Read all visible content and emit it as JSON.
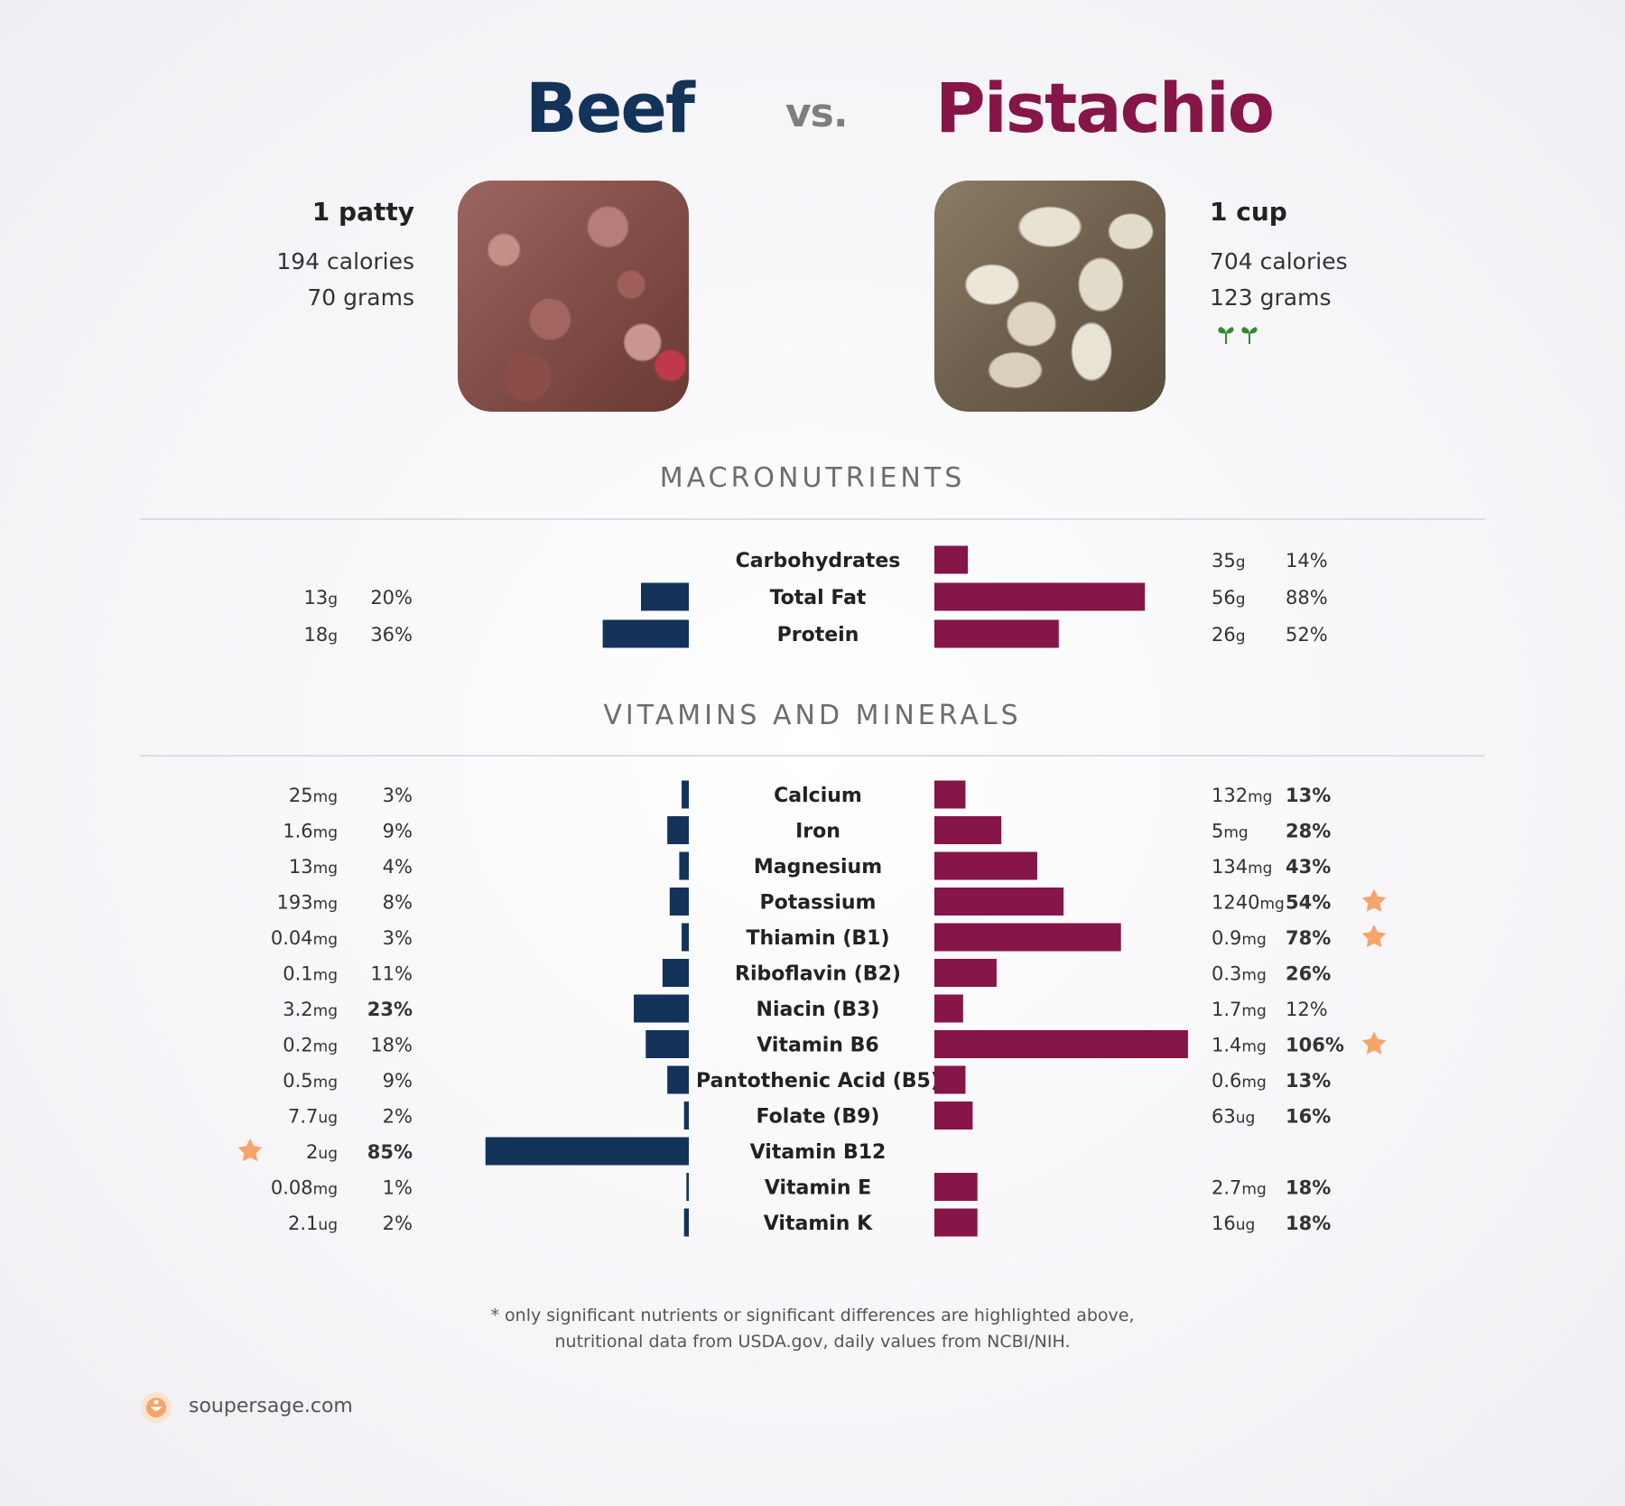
{
  "header": {
    "food_a": "Beef",
    "vs": "vs.",
    "food_b": "Pistachio"
  },
  "food_a_info": {
    "serving": "1 patty",
    "calories": "194 calories",
    "grams": "70 grams",
    "photo_icon": "beef-photo"
  },
  "food_b_info": {
    "serving": "1 cup",
    "calories": "704 calories",
    "grams": "123 grams",
    "photo_icon": "pistachio-photo",
    "badge_icon": "sprout-icon"
  },
  "colors": {
    "food_a": "#14335a",
    "food_b": "#861548",
    "star": "#f5a56b"
  },
  "sections": {
    "macros_title": "MACRONUTRIENTS",
    "vitamins_title": "VITAMINS AND MINERALS"
  },
  "footnote": {
    "line1": "* only significant nutrients or significant differences are highlighted above,",
    "line2": "nutritional data from USDA.gov, daily values from NCBI/NIH."
  },
  "footer": {
    "site": "soupersage.com",
    "logo_icon": "soupersage-logo-icon"
  },
  "chart_data": [
    {
      "type": "bar",
      "title": "MACRONUTRIENTS",
      "orientation": "horizontal-diverging",
      "series_names": [
        "Beef",
        "Pistachio"
      ],
      "rows": [
        {
          "nutrient": "Carbohydrates",
          "a_amount": "",
          "a_unit": "",
          "a_pct": null,
          "a_pct_label": "",
          "a_bold": false,
          "a_star": false,
          "b_amount": "35",
          "b_unit": "g",
          "b_pct": 14,
          "b_pct_label": "14%",
          "b_bold": false,
          "b_star": false
        },
        {
          "nutrient": "Total Fat",
          "a_amount": "13",
          "a_unit": "g",
          "a_pct": 20,
          "a_pct_label": "20%",
          "a_bold": false,
          "a_star": false,
          "b_amount": "56",
          "b_unit": "g",
          "b_pct": 88,
          "b_pct_label": "88%",
          "b_bold": false,
          "b_star": false
        },
        {
          "nutrient": "Protein",
          "a_amount": "18",
          "a_unit": "g",
          "a_pct": 36,
          "a_pct_label": "36%",
          "a_bold": false,
          "a_star": false,
          "b_amount": "26",
          "b_unit": "g",
          "b_pct": 52,
          "b_pct_label": "52%",
          "b_bold": false,
          "b_star": false
        }
      ]
    },
    {
      "type": "bar",
      "title": "VITAMINS AND MINERALS",
      "orientation": "horizontal-diverging",
      "series_names": [
        "Beef",
        "Pistachio"
      ],
      "rows": [
        {
          "nutrient": "Calcium",
          "a_amount": "25",
          "a_unit": "mg",
          "a_pct": 3,
          "a_pct_label": "3%",
          "a_bold": false,
          "a_star": false,
          "b_amount": "132",
          "b_unit": "mg",
          "b_pct": 13,
          "b_pct_label": "13%",
          "b_bold": true,
          "b_star": false
        },
        {
          "nutrient": "Iron",
          "a_amount": "1.6",
          "a_unit": "mg",
          "a_pct": 9,
          "a_pct_label": "9%",
          "a_bold": false,
          "a_star": false,
          "b_amount": "5",
          "b_unit": "mg",
          "b_pct": 28,
          "b_pct_label": "28%",
          "b_bold": true,
          "b_star": false
        },
        {
          "nutrient": "Magnesium",
          "a_amount": "13",
          "a_unit": "mg",
          "a_pct": 4,
          "a_pct_label": "4%",
          "a_bold": false,
          "a_star": false,
          "b_amount": "134",
          "b_unit": "mg",
          "b_pct": 43,
          "b_pct_label": "43%",
          "b_bold": true,
          "b_star": false
        },
        {
          "nutrient": "Potassium",
          "a_amount": "193",
          "a_unit": "mg",
          "a_pct": 8,
          "a_pct_label": "8%",
          "a_bold": false,
          "a_star": false,
          "b_amount": "1240",
          "b_unit": "mg",
          "b_pct": 54,
          "b_pct_label": "54%",
          "b_bold": true,
          "b_star": true
        },
        {
          "nutrient": "Thiamin (B1)",
          "a_amount": "0.04",
          "a_unit": "mg",
          "a_pct": 3,
          "a_pct_label": "3%",
          "a_bold": false,
          "a_star": false,
          "b_amount": "0.9",
          "b_unit": "mg",
          "b_pct": 78,
          "b_pct_label": "78%",
          "b_bold": true,
          "b_star": true
        },
        {
          "nutrient": "Riboflavin (B2)",
          "a_amount": "0.1",
          "a_unit": "mg",
          "a_pct": 11,
          "a_pct_label": "11%",
          "a_bold": false,
          "a_star": false,
          "b_amount": "0.3",
          "b_unit": "mg",
          "b_pct": 26,
          "b_pct_label": "26%",
          "b_bold": true,
          "b_star": false
        },
        {
          "nutrient": "Niacin (B3)",
          "a_amount": "3.2",
          "a_unit": "mg",
          "a_pct": 23,
          "a_pct_label": "23%",
          "a_bold": true,
          "a_star": false,
          "b_amount": "1.7",
          "b_unit": "mg",
          "b_pct": 12,
          "b_pct_label": "12%",
          "b_bold": false,
          "b_star": false
        },
        {
          "nutrient": "Vitamin B6",
          "a_amount": "0.2",
          "a_unit": "mg",
          "a_pct": 18,
          "a_pct_label": "18%",
          "a_bold": false,
          "a_star": false,
          "b_amount": "1.4",
          "b_unit": "mg",
          "b_pct": 106,
          "b_pct_label": "106%",
          "b_bold": true,
          "b_star": true
        },
        {
          "nutrient": "Pantothenic Acid (B5)",
          "a_amount": "0.5",
          "a_unit": "mg",
          "a_pct": 9,
          "a_pct_label": "9%",
          "a_bold": false,
          "a_star": false,
          "b_amount": "0.6",
          "b_unit": "mg",
          "b_pct": 13,
          "b_pct_label": "13%",
          "b_bold": true,
          "b_star": false
        },
        {
          "nutrient": "Folate (B9)",
          "a_amount": "7.7",
          "a_unit": "ug",
          "a_pct": 2,
          "a_pct_label": "2%",
          "a_bold": false,
          "a_star": false,
          "b_amount": "63",
          "b_unit": "ug",
          "b_pct": 16,
          "b_pct_label": "16%",
          "b_bold": true,
          "b_star": false
        },
        {
          "nutrient": "Vitamin B12",
          "a_amount": "2",
          "a_unit": "ug",
          "a_pct": 85,
          "a_pct_label": "85%",
          "a_bold": true,
          "a_star": true,
          "b_amount": "",
          "b_unit": "",
          "b_pct": null,
          "b_pct_label": "",
          "b_bold": false,
          "b_star": false
        },
        {
          "nutrient": "Vitamin E",
          "a_amount": "0.08",
          "a_unit": "mg",
          "a_pct": 1,
          "a_pct_label": "1%",
          "a_bold": false,
          "a_star": false,
          "b_amount": "2.7",
          "b_unit": "mg",
          "b_pct": 18,
          "b_pct_label": "18%",
          "b_bold": true,
          "b_star": false
        },
        {
          "nutrient": "Vitamin K",
          "a_amount": "2.1",
          "a_unit": "ug",
          "a_pct": 2,
          "a_pct_label": "2%",
          "a_bold": false,
          "a_star": false,
          "b_amount": "16",
          "b_unit": "ug",
          "b_pct": 18,
          "b_pct_label": "18%",
          "b_bold": true,
          "b_star": false
        }
      ]
    }
  ]
}
